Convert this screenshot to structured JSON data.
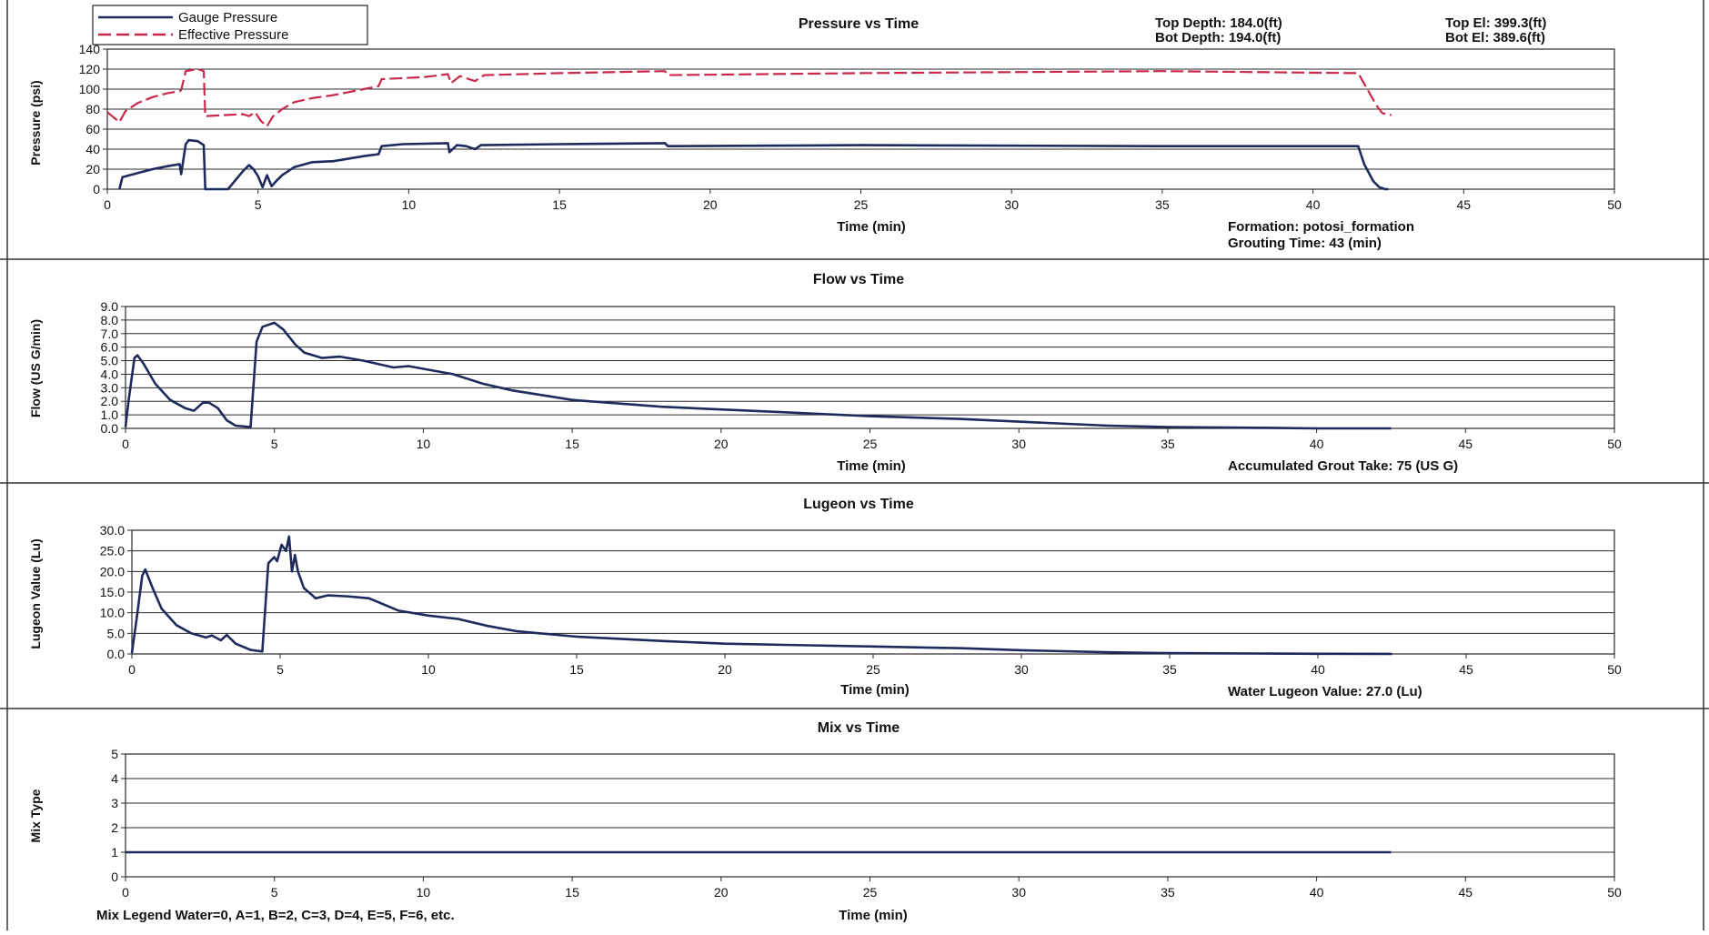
{
  "chart_data": [
    {
      "type": "line",
      "title": "Pressure vs Time",
      "xlabel": "Time (min)",
      "ylabel": "Pressure (psi)",
      "xlim": [
        0,
        50
      ],
      "ylim": [
        0,
        140
      ],
      "xticks": [
        "0",
        "5",
        "10",
        "15",
        "20",
        "25",
        "30",
        "35",
        "40",
        "45",
        "50"
      ],
      "yticks": [
        "0",
        "20",
        "40",
        "60",
        "80",
        "100",
        "120",
        "140"
      ],
      "legend_position": "top-left",
      "info": {
        "top_depth": "Top Depth: 184.0(ft)",
        "bot_depth": "Bot Depth: 194.0(ft)",
        "top_el": "Top El: 399.3(ft)",
        "bot_el": "Bot El: 389.6(ft)",
        "formation": "Formation: potosi_formation",
        "grouting_time": "Grouting Time: 43 (min)"
      },
      "series": [
        {
          "name": "Gauge Pressure",
          "color": "#1f2a5c",
          "style": "solid",
          "x": [
            0.4,
            0.5,
            1,
            1.5,
            2,
            2.4,
            2.45,
            2.6,
            2.7,
            3.0,
            3.2,
            3.25,
            4.0,
            4.5,
            4.7,
            4.85,
            5.0,
            5.15,
            5.3,
            5.45,
            5.6,
            5.8,
            6.2,
            6.8,
            7.5,
            8.5,
            9.0,
            9.1,
            9.8,
            11.3,
            11.35,
            11.6,
            11.9,
            12.2,
            12.4,
            15,
            18.5,
            18.6,
            25,
            35,
            41.5,
            41.7,
            42.0,
            42.2,
            42.4,
            42.5
          ],
          "y": [
            0,
            12,
            16,
            20,
            23,
            25,
            15,
            45,
            49,
            48,
            44,
            0,
            0,
            18,
            24,
            20,
            13,
            2,
            14,
            3,
            8,
            14,
            22,
            27,
            28,
            33,
            35,
            43,
            45,
            46,
            37,
            44,
            43,
            40,
            44,
            45,
            46,
            43,
            44,
            43,
            43,
            25,
            8,
            2,
            0,
            0
          ]
        },
        {
          "name": "Effective Pressure",
          "color": "#c8284a",
          "style": "dashed",
          "x": [
            0,
            0.4,
            0.6,
            1,
            1.5,
            2,
            2.4,
            2.45,
            2.6,
            3.0,
            3.2,
            3.25,
            4.5,
            4.7,
            4.9,
            5.1,
            5.3,
            5.5,
            5.8,
            6.2,
            6.8,
            7.5,
            8.5,
            9.0,
            9.1,
            10.5,
            11.3,
            11.4,
            11.7,
            12.2,
            12.5,
            15,
            18.5,
            18.6,
            25,
            35,
            41.5,
            41.8,
            42.1,
            42.3,
            42.6
          ],
          "y": [
            77,
            67,
            78,
            86,
            92,
            96,
            98,
            99,
            118,
            120,
            118,
            73,
            75,
            73,
            77,
            68,
            63,
            73,
            80,
            87,
            91,
            94,
            100,
            103,
            110,
            112,
            115,
            106,
            113,
            108,
            114,
            116,
            118,
            114,
            116,
            118,
            116,
            100,
            84,
            76,
            74
          ]
        }
      ]
    },
    {
      "type": "line",
      "title": "Flow vs Time",
      "xlabel": "Time (min)",
      "ylabel": "Flow (US G/min)",
      "xlim": [
        0,
        50
      ],
      "ylim": [
        0,
        9
      ],
      "xticks": [
        "0",
        "5",
        "10",
        "15",
        "20",
        "25",
        "30",
        "35",
        "40",
        "45",
        "50"
      ],
      "yticks": [
        "0.0",
        "1.0",
        "2.0",
        "3.0",
        "4.0",
        "5.0",
        "6.0",
        "7.0",
        "8.0",
        "9.0"
      ],
      "info": {
        "grout_take": "Accumulated Grout Take: 75 (US G)"
      },
      "series": [
        {
          "name": "Flow",
          "color": "#1f2a5c",
          "x": [
            0,
            0.1,
            0.3,
            0.4,
            0.6,
            1,
            1.5,
            2,
            2.3,
            2.6,
            2.8,
            3.1,
            3.4,
            3.7,
            4.2,
            4.4,
            4.6,
            5.0,
            5.3,
            5.7,
            6.0,
            6.6,
            7.2,
            8.0,
            9.0,
            9.5,
            10,
            11,
            12,
            13,
            15,
            18,
            20,
            22,
            25,
            28,
            30,
            33,
            35,
            38,
            40,
            42.5
          ],
          "y": [
            0.1,
            2.0,
            5.2,
            5.4,
            4.8,
            3.3,
            2.1,
            1.5,
            1.3,
            1.9,
            1.9,
            1.5,
            0.6,
            0.2,
            0.1,
            6.4,
            7.5,
            7.8,
            7.3,
            6.2,
            5.6,
            5.2,
            5.3,
            5.0,
            4.5,
            4.6,
            4.4,
            4.0,
            3.3,
            2.8,
            2.1,
            1.6,
            1.4,
            1.2,
            0.9,
            0.7,
            0.5,
            0.2,
            0.1,
            0.05,
            0.0,
            0.0
          ]
        }
      ]
    },
    {
      "type": "line",
      "title": "Lugeon vs Time",
      "xlabel": "Time (min)",
      "ylabel": "Lugeon Value (Lu)",
      "xlim": [
        0,
        50
      ],
      "ylim": [
        0,
        30
      ],
      "xticks": [
        "0",
        "5",
        "10",
        "15",
        "20",
        "25",
        "30",
        "35",
        "40",
        "45",
        "50"
      ],
      "yticks": [
        "0.0",
        "5.0",
        "10.0",
        "15.0",
        "20.0",
        "25.0",
        "30.0"
      ],
      "info": {
        "water_lugeon": "Water Lugeon Value: 27.0 (Lu)"
      },
      "series": [
        {
          "name": "Lugeon",
          "color": "#1f2a5c",
          "x": [
            0,
            0.15,
            0.35,
            0.45,
            0.7,
            1.0,
            1.5,
            2.0,
            2.5,
            2.7,
            3.0,
            3.2,
            3.5,
            4.0,
            4.4,
            4.6,
            4.8,
            4.9,
            5.05,
            5.2,
            5.3,
            5.4,
            5.5,
            5.6,
            5.8,
            6.2,
            6.6,
            7.2,
            8.0,
            9.0,
            10,
            11,
            12,
            13,
            15,
            18,
            20,
            22,
            25,
            28,
            30,
            33,
            35,
            38,
            40,
            42.5
          ],
          "y": [
            0.2,
            8,
            19,
            20.5,
            16,
            11,
            7,
            5,
            4,
            4.5,
            3.3,
            4.6,
            2.5,
            1.0,
            0.6,
            22,
            23.5,
            22.5,
            26.5,
            25,
            28.5,
            20,
            24,
            20,
            16,
            13.5,
            14.2,
            14.0,
            13.5,
            10.5,
            9.3,
            8.5,
            6.8,
            5.5,
            4.2,
            3.1,
            2.5,
            2.2,
            1.8,
            1.4,
            0.9,
            0.4,
            0.2,
            0.1,
            0.05,
            0.0
          ]
        }
      ]
    },
    {
      "type": "line",
      "title": "Mix vs Time",
      "xlabel": "Time (min)",
      "ylabel": "Mix Type",
      "xlim": [
        0,
        50
      ],
      "ylim": [
        0,
        5
      ],
      "xticks": [
        "0",
        "5",
        "10",
        "15",
        "20",
        "25",
        "30",
        "35",
        "40",
        "45",
        "50"
      ],
      "yticks": [
        "0",
        "1",
        "2",
        "3",
        "4",
        "5"
      ],
      "info": {
        "mix_legend": "Mix Legend Water=0, A=1, B=2, C=3, D=4, E=5, F=6, etc."
      },
      "series": [
        {
          "name": "Mix",
          "color": "#1f2a5c",
          "x": [
            0,
            42.5
          ],
          "y": [
            1,
            1
          ]
        }
      ]
    }
  ]
}
